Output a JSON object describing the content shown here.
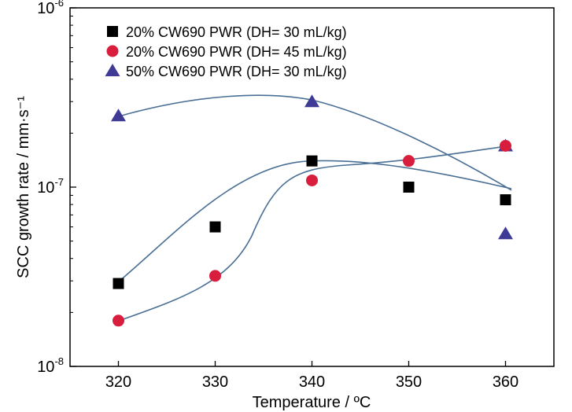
{
  "chart_data": {
    "type": "scatter",
    "xlabel": "Temperature / ºC",
    "ylabel": "SCC growth rate / mm·s⁻¹",
    "x_ticks": [
      320,
      330,
      340,
      350,
      360
    ],
    "xlim": [
      315,
      365
    ],
    "ylim": [
      1e-08,
      1e-06
    ],
    "y_scale": "log",
    "y_ticks": [
      {
        "value": 1e-08,
        "base": "10",
        "exp": "-8"
      },
      {
        "value": 1e-07,
        "base": "10",
        "exp": "-7"
      },
      {
        "value": 1e-06,
        "base": "10",
        "exp": "-6"
      }
    ],
    "legend_position": "top-left",
    "grid": false,
    "series": [
      {
        "name": "20% CW690 PWR (DH= 30 mL/kg)",
        "marker": "square",
        "color": "#000000",
        "points": [
          [
            320,
            2.9e-08
          ],
          [
            330,
            6e-08
          ],
          [
            340,
            1.4e-07
          ],
          [
            350,
            1e-07
          ],
          [
            360,
            8.5e-08
          ]
        ]
      },
      {
        "name": "20% CW690 PWR (DH= 45 mL/kg)",
        "marker": "circle",
        "color": "#d81e3c",
        "points": [
          [
            320,
            1.8e-08
          ],
          [
            330,
            3.2e-08
          ],
          [
            340,
            1.09e-07
          ],
          [
            350,
            1.4e-07
          ],
          [
            360,
            1.7e-07
          ]
        ]
      },
      {
        "name": "50% CW690 PWR (DH= 30 mL/kg)",
        "marker": "triangle",
        "color": "#3f3a96",
        "points": [
          [
            320,
            2.5e-07
          ],
          [
            340,
            3e-07
          ],
          [
            360,
            1.7e-07
          ],
          [
            360,
            5.5e-08
          ]
        ]
      }
    ],
    "fit_color": "#4a6f95"
  }
}
